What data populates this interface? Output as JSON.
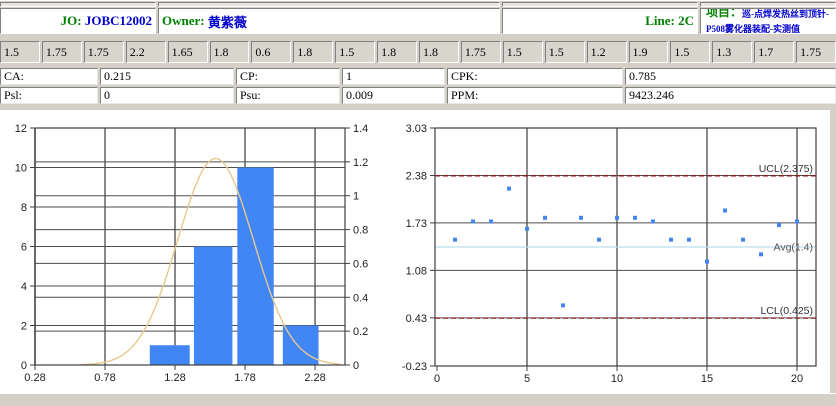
{
  "header": {
    "jo_label": "JO:",
    "jo_value": "JOBC12002",
    "owner_label": "Owner:",
    "owner_value": "黄紫薇",
    "line_label": "Line:",
    "line_value": "2C",
    "project_label": "项目：",
    "project_value": "巡-点焊发热丝到顶针-P508雾化器装配-实测值"
  },
  "measurements": [
    "1.5",
    "1.75",
    "1.75",
    "2.2",
    "1.65",
    "1.8",
    "0.6",
    "1.8",
    "1.5",
    "1.8",
    "1.8",
    "1.75",
    "1.5",
    "1.5",
    "1.2",
    "1.9",
    "1.5",
    "1.3",
    "1.7",
    "1.75"
  ],
  "stats": {
    "row1": [
      {
        "label": "CA:",
        "value": "0.215"
      },
      {
        "label": "CP:",
        "value": "1"
      },
      {
        "label": "CPK:",
        "value": "0.785"
      }
    ],
    "row2": [
      {
        "label": "Psl:",
        "value": "0"
      },
      {
        "label": "Psu:",
        "value": "0.009"
      },
      {
        "label": "PPM:",
        "value": "9423.246"
      }
    ]
  },
  "chart_data": [
    {
      "type": "bar",
      "subtype": "histogram-with-normal-curve",
      "title": "",
      "counts": [
        1,
        6,
        10,
        2
      ],
      "bars": [
        {
          "from": 1.1,
          "to": 1.385,
          "count": 1
        },
        {
          "from": 1.415,
          "to": 1.69,
          "count": 6
        },
        {
          "from": 1.725,
          "to": 1.985,
          "count": 10
        },
        {
          "from": 2.05,
          "to": 2.305,
          "count": 2
        }
      ],
      "left_axis": {
        "ticks": [
          0,
          2,
          4,
          6,
          8,
          10,
          12
        ],
        "tick_labels": [
          "0",
          "2",
          "4",
          "6",
          "8",
          "10",
          "12"
        ],
        "lim": [
          0,
          12
        ]
      },
      "right_axis": {
        "ticks": [
          0,
          0.2,
          0.4,
          0.6,
          0.8,
          1,
          1.2,
          1.4
        ],
        "tick_labels": [
          "0",
          "0.2",
          "0.4",
          "0.6",
          "0.8",
          "1",
          "1.2",
          "1.4"
        ],
        "lim": [
          0,
          1.4
        ]
      },
      "x_axis": {
        "ticks": [
          0.28,
          0.78,
          1.28,
          1.78,
          2.28
        ],
        "tick_labels": [
          "0.28",
          "0.78",
          "1.28",
          "1.78",
          "2.28"
        ],
        "lim": [
          0.28,
          2.494
        ]
      },
      "curve": {
        "shape": "normal",
        "mean": 1.57,
        "sigma": 0.27,
        "peak_right_axis": 1.22,
        "color": "#e5c98c"
      },
      "bar_color": "#4285f4",
      "grid": true
    },
    {
      "type": "scatter",
      "subtype": "control-chart",
      "x": [
        1,
        2,
        3,
        4,
        5,
        6,
        7,
        8,
        9,
        10,
        11,
        12,
        13,
        14,
        15,
        16,
        17,
        18,
        19,
        20
      ],
      "values": [
        1.5,
        1.75,
        1.75,
        2.2,
        1.65,
        1.8,
        0.6,
        1.8,
        1.5,
        1.8,
        1.8,
        1.75,
        1.5,
        1.5,
        1.2,
        1.9,
        1.5,
        1.3,
        1.7,
        1.75
      ],
      "y_axis": {
        "ticks": [
          3.03,
          2.38,
          1.73,
          1.08,
          0.43,
          -0.23
        ],
        "tick_labels": [
          "3.03",
          "2.38",
          "1.73",
          "1.08",
          "0.43",
          "-0.23"
        ],
        "lim": [
          -0.23,
          3.03
        ]
      },
      "x_axis": {
        "ticks": [
          0,
          5,
          10,
          15,
          20
        ],
        "tick_labels": [
          "0",
          "5",
          "10",
          "15",
          "20"
        ],
        "lim": [
          0,
          21.1
        ]
      },
      "lines": {
        "ucl": {
          "label": "UCL(2.375)",
          "value": 2.375,
          "color": "#991111",
          "style": "dashed"
        },
        "avg": {
          "label": "Avg(1.4)",
          "value": 1.4,
          "color": "#bcdde9",
          "style": "solid"
        },
        "lcl": {
          "label": "LCL(0.425)",
          "value": 0.425,
          "color": "#991111",
          "style": "dashed"
        }
      },
      "point_color": "#4285f4",
      "grid": true
    }
  ]
}
